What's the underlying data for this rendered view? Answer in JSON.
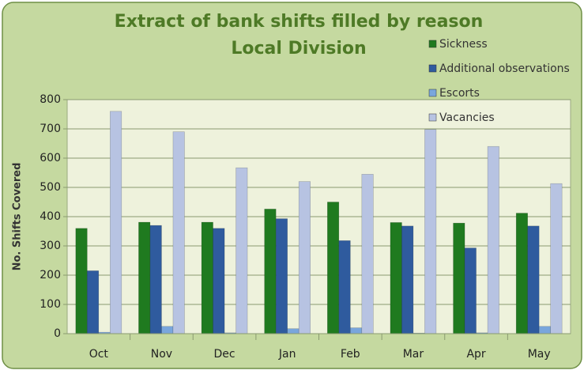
{
  "chart_data": {
    "type": "bar",
    "title": "Extract of bank shifts filled by reason",
    "subtitle": "Local Division",
    "y_label": "No. Shifts Covered",
    "categories": [
      "Oct",
      "Nov",
      "Dec",
      "Jan",
      "Feb",
      "Mar",
      "Apr",
      "May"
    ],
    "series": [
      {
        "name": "Sickness",
        "color": "#1f7a1f",
        "values": [
          360,
          381,
          381,
          426,
          450,
          380,
          378,
          412
        ]
      },
      {
        "name": "Additional observations",
        "color": "#2f5b9e",
        "values": [
          215,
          370,
          360,
          393,
          318,
          368,
          293,
          368
        ]
      },
      {
        "name": "Escorts",
        "color": "#79a6dc",
        "values": [
          5,
          25,
          3,
          17,
          20,
          2,
          3,
          25
        ]
      },
      {
        "name": "Vacancies",
        "color": "#b7c3e2",
        "values": [
          760,
          690,
          567,
          520,
          545,
          698,
          640,
          513
        ]
      }
    ],
    "ylim": [
      0,
      800
    ],
    "yticks": [
      0,
      100,
      200,
      300,
      400,
      500,
      600,
      700,
      800
    ],
    "grid": true,
    "legend": "top-right"
  }
}
